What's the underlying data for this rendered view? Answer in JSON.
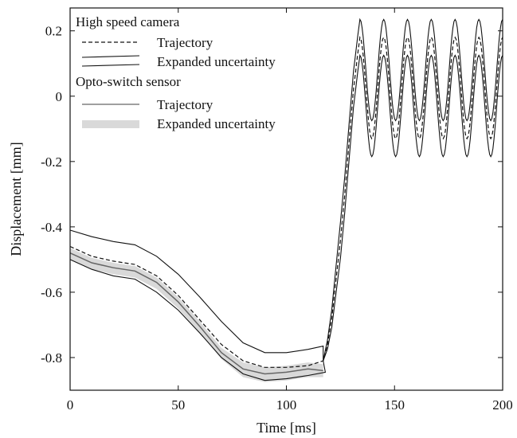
{
  "chart_data": {
    "type": "line",
    "xlabel": "Time [ms]",
    "ylabel": "Displacement [mm]",
    "xlim": [
      0,
      200
    ],
    "ylim": [
      -0.9,
      0.27
    ],
    "x_ticks": [
      0,
      50,
      100,
      150,
      200
    ],
    "x_tick_labels": [
      "0",
      "50",
      "100",
      "150",
      "200"
    ],
    "y_ticks": [
      -0.8,
      -0.6,
      -0.4,
      -0.2,
      0,
      0.2
    ],
    "y_tick_labels": [
      "-0.8",
      "-0.6",
      "-0.4",
      "-0.2",
      "0",
      "0.2"
    ],
    "grid": false,
    "legend_position": "top-left",
    "legend": {
      "groups": [
        {
          "title": "High speed camera",
          "items": [
            {
              "label": "Trajectory",
              "style": "dashed"
            },
            {
              "label": "Expanded uncertainty",
              "style": "double-thin"
            }
          ]
        },
        {
          "title": "Opto-switch sensor",
          "items": [
            {
              "label": "Trajectory",
              "style": "solid-gray"
            },
            {
              "label": "Expanded uncertainty",
              "style": "band"
            }
          ]
        }
      ]
    },
    "series": [
      {
        "role": "camera_upper_bound",
        "color": "#111111",
        "x": [
          0,
          10,
          20,
          30,
          40,
          50,
          60,
          70,
          80,
          90,
          100,
          110,
          117
        ],
        "y": [
          -0.41,
          -0.43,
          -0.445,
          -0.455,
          -0.49,
          -0.545,
          -0.615,
          -0.69,
          -0.755,
          -0.785,
          -0.785,
          -0.775,
          -0.765
        ]
      },
      {
        "role": "camera_trajectory",
        "color": "#111111",
        "x": [
          0,
          10,
          20,
          30,
          40,
          50,
          60,
          70,
          80,
          90,
          100,
          110,
          117
        ],
        "y": [
          -0.46,
          -0.49,
          -0.505,
          -0.515,
          -0.55,
          -0.61,
          -0.685,
          -0.76,
          -0.81,
          -0.83,
          -0.83,
          -0.825,
          -0.81
        ]
      },
      {
        "role": "camera_lower_bound",
        "color": "#111111",
        "x": [
          0,
          10,
          20,
          30,
          40,
          50,
          60,
          70,
          80,
          90,
          100,
          110,
          118
        ],
        "y": [
          -0.5,
          -0.53,
          -0.55,
          -0.56,
          -0.6,
          -0.655,
          -0.725,
          -0.8,
          -0.85,
          -0.87,
          -0.865,
          -0.855,
          -0.845
        ]
      },
      {
        "role": "opto_trajectory",
        "color": "#666666",
        "x": [
          0,
          10,
          20,
          30,
          40,
          50,
          60,
          70,
          80,
          90,
          100,
          110,
          117
        ],
        "y": [
          -0.48,
          -0.51,
          -0.525,
          -0.535,
          -0.57,
          -0.63,
          -0.705,
          -0.785,
          -0.835,
          -0.85,
          -0.845,
          -0.835,
          -0.84
        ]
      },
      {
        "role": "opto_band_upper",
        "color": "#d9d9d9",
        "x": [
          0,
          10,
          20,
          30,
          40,
          50,
          60,
          70,
          80,
          90,
          100,
          110,
          117
        ],
        "y": [
          -0.465,
          -0.495,
          -0.51,
          -0.52,
          -0.555,
          -0.615,
          -0.69,
          -0.77,
          -0.815,
          -0.83,
          -0.825,
          -0.815,
          -0.82
        ]
      },
      {
        "role": "opto_band_lower",
        "color": "#d9d9d9",
        "x": [
          0,
          10,
          20,
          30,
          40,
          50,
          60,
          70,
          80,
          90,
          100,
          110,
          117
        ],
        "y": [
          -0.5,
          -0.53,
          -0.545,
          -0.555,
          -0.59,
          -0.65,
          -0.725,
          -0.805,
          -0.86,
          -0.875,
          -0.87,
          -0.86,
          -0.86
        ]
      },
      {
        "role": "camera_rise_and_oscillation",
        "color": "#111111",
        "transition_x": [
          117,
          119,
          121,
          123,
          125,
          127,
          129,
          131,
          133,
          134
        ],
        "transition_y": [
          -0.81,
          -0.76,
          -0.68,
          -0.56,
          -0.44,
          -0.3,
          -0.14,
          0.02,
          0.13,
          0.18
        ],
        "oscillation": {
          "x_start": 134,
          "x_end": 200,
          "period": 11,
          "center": 0.025,
          "trajectory_amplitude": 0.155,
          "uncertainty_halfwidth": 0.055
        }
      }
    ]
  }
}
